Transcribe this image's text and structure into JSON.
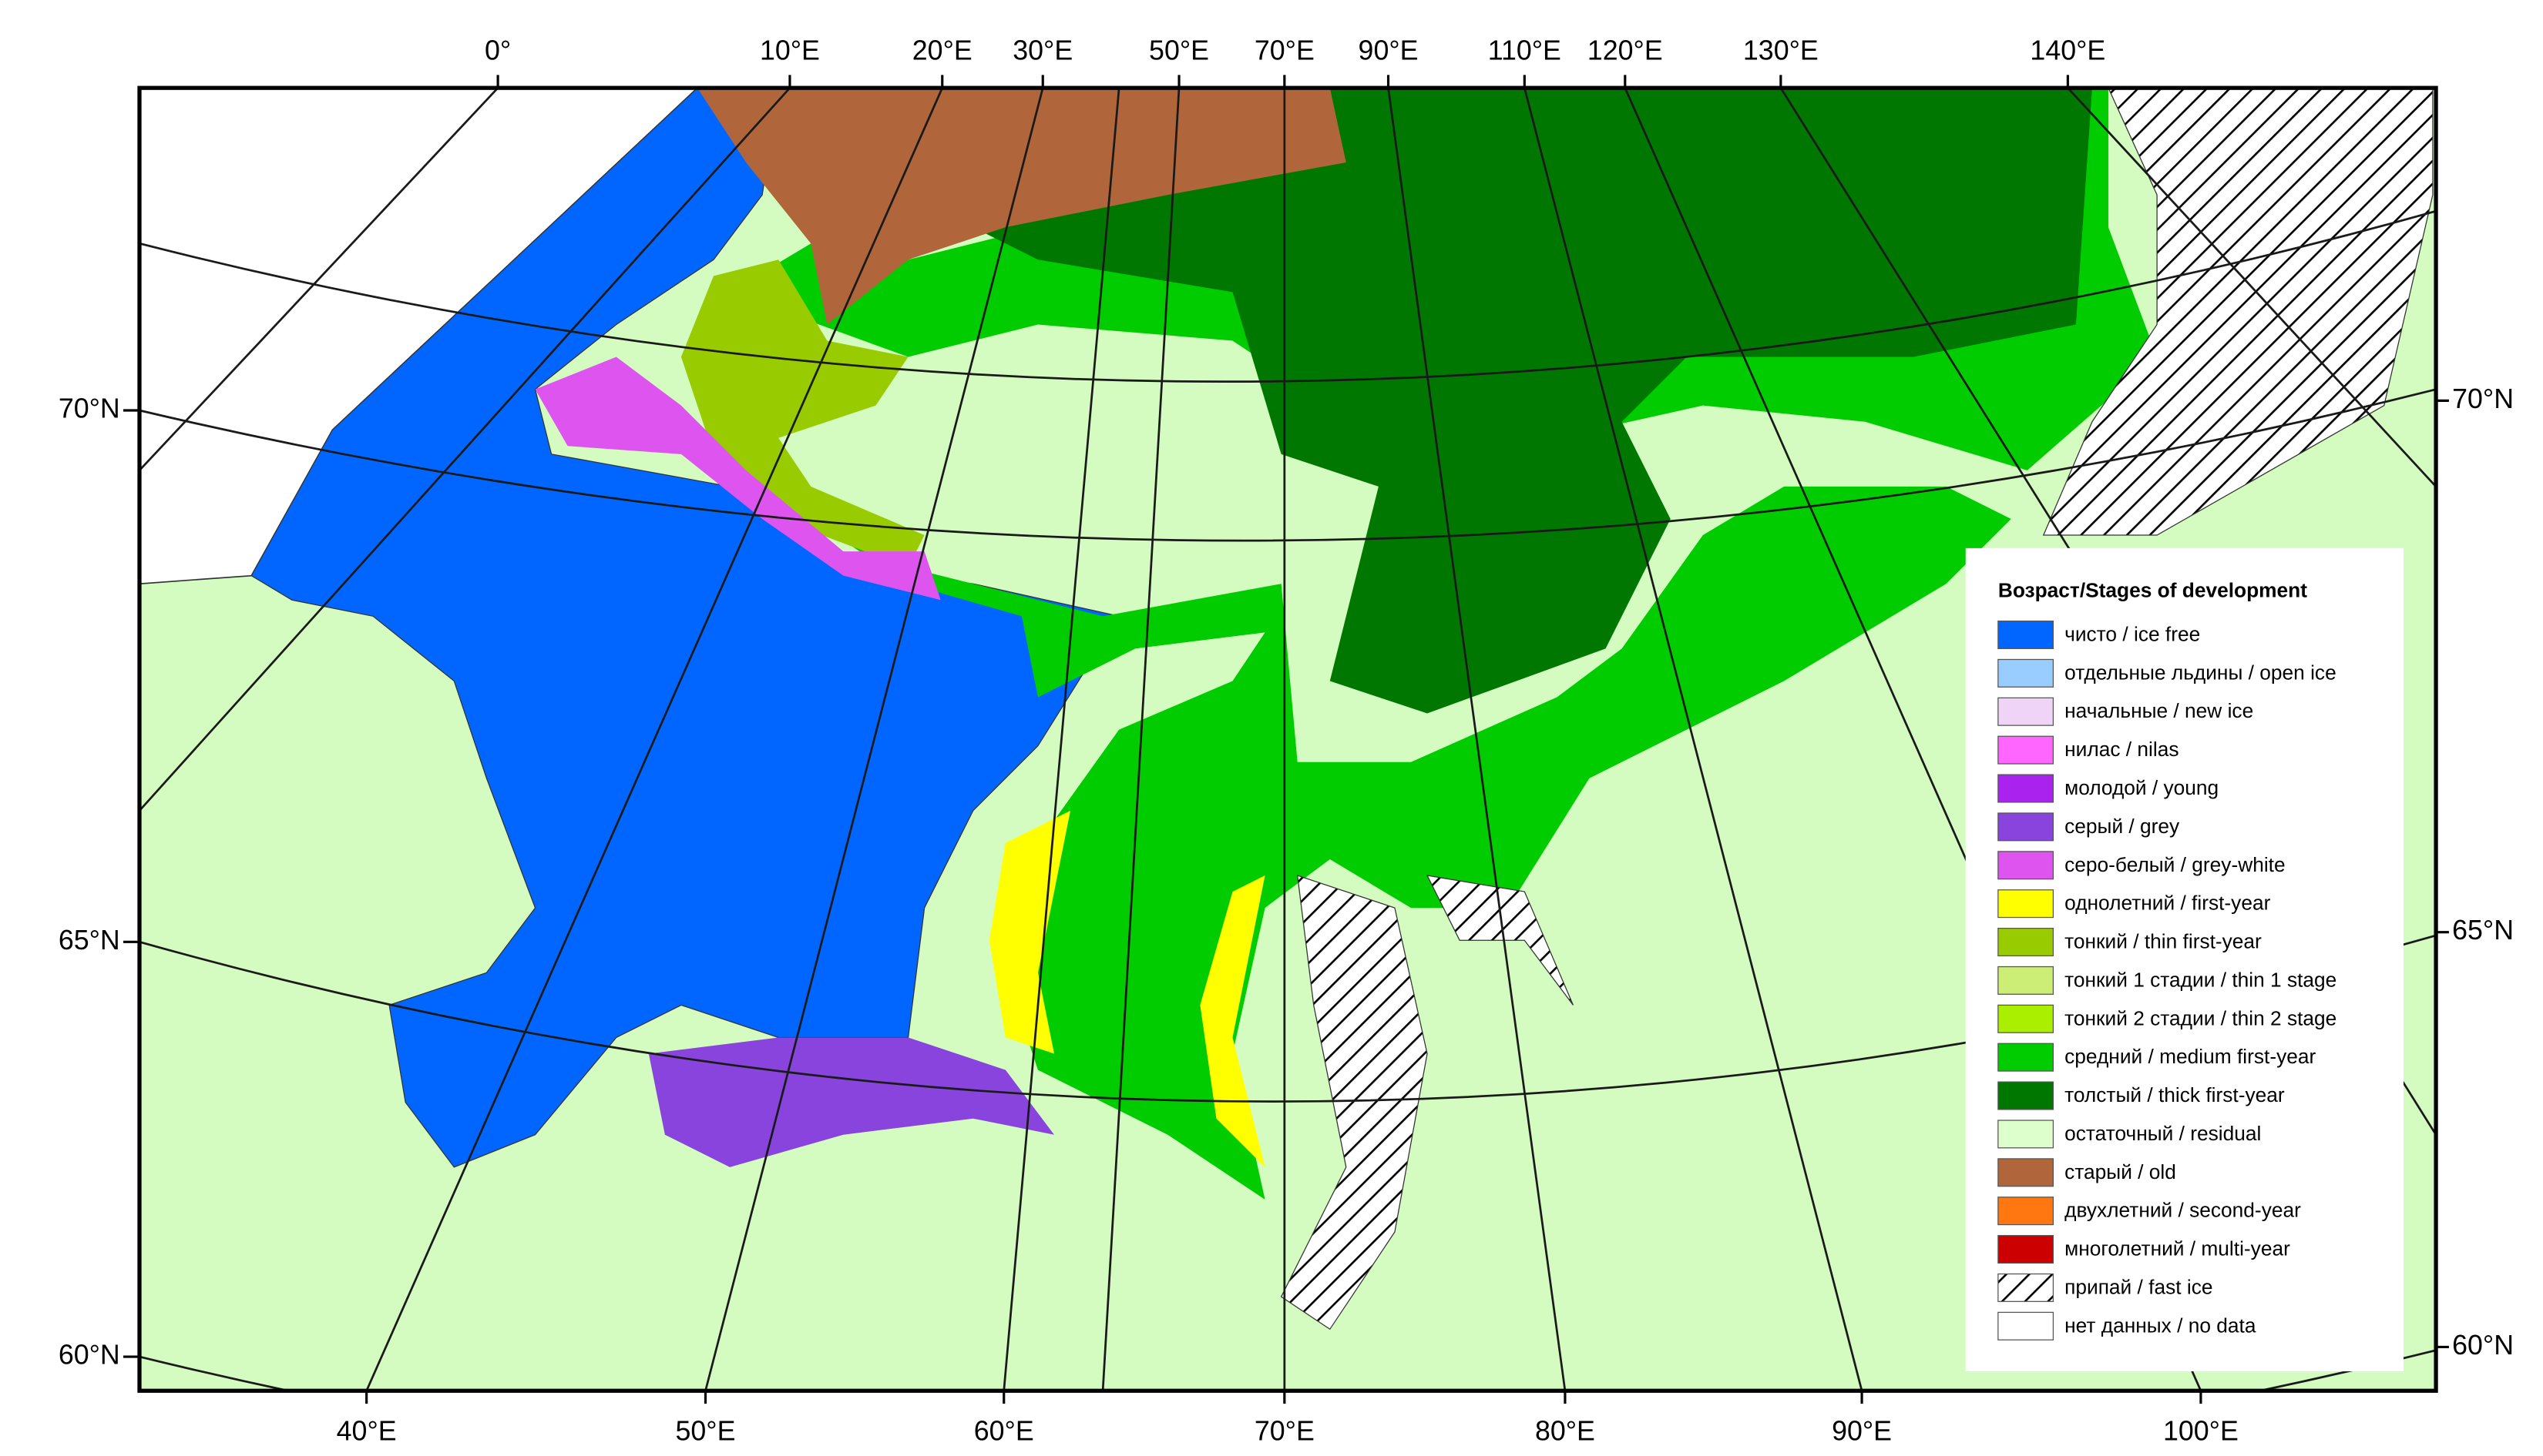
{
  "map": {
    "top_labels": [
      "0°",
      "10°E",
      "20°E",
      "30°E",
      "50°E",
      "70°E",
      "90°E",
      "110°E",
      "120°E",
      "130°E",
      "140°E"
    ],
    "bottom_labels": [
      "40°E",
      "50°E",
      "60°E",
      "70°E",
      "80°E",
      "90°E",
      "100°E"
    ],
    "left_labels": [
      "70°N",
      "65°N",
      "60°N"
    ],
    "right_labels": [
      "70°N",
      "65°N",
      "60°N"
    ]
  },
  "legend": {
    "title": "Возраст/Stages of development",
    "items": [
      {
        "label": "чисто / ice free",
        "color": "#0066ff"
      },
      {
        "label": "отдельные льдины / open ice",
        "color": "#99ccff"
      },
      {
        "label": "начальные / new ice",
        "color": "#f0d4f8"
      },
      {
        "label": "нилас / nilas",
        "color": "#ff66ff"
      },
      {
        "label": "молодой / young",
        "color": "#aa22ee"
      },
      {
        "label": "серый / grey",
        "color": "#8844dd"
      },
      {
        "label": "серо-белый / grey-white",
        "color": "#dd55ee"
      },
      {
        "label": "однолетний / first-year",
        "color": "#ffff00"
      },
      {
        "label": "тонкий / thin first-year",
        "color": "#99cc00"
      },
      {
        "label": "тонкий 1 стадии / thin 1 stage",
        "color": "#ccee77"
      },
      {
        "label": "тонкий 2 стадии / thin 2 stage",
        "color": "#aaee00"
      },
      {
        "label": "средний / medium first-year",
        "color": "#00cc00"
      },
      {
        "label": "толстый / thick first-year",
        "color": "#007700"
      },
      {
        "label": "остаточный / residual",
        "color": "#ddffcc"
      },
      {
        "label": "старый / old",
        "color": "#b0663a"
      },
      {
        "label": "двухлетний / second-year",
        "color": "#ff7711"
      },
      {
        "label": "многолетний / multi-year",
        "color": "#cc0000"
      },
      {
        "label": "припай / fast ice",
        "color": "#ffffff",
        "hatch": true
      },
      {
        "label": "нет данных / no data",
        "color": "#ffffff"
      }
    ]
  }
}
